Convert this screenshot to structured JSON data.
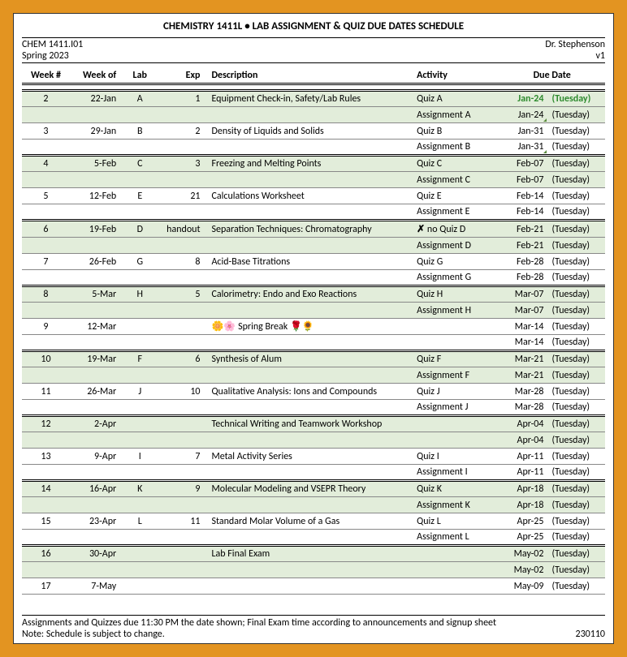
{
  "title": "CHEMISTRY 1411L  •  LAB ASSIGNMENT & QUIZ DUE DATES SCHEDULE",
  "meta": {
    "course": "CHEM 1411.I01",
    "term": "Spring 2023",
    "instructor": "Dr. Stephenson",
    "version": "v1"
  },
  "headers": {
    "week": "Week #",
    "weekof": "Week of",
    "lab": "Lab",
    "exp": "Exp",
    "desc": "Description",
    "activity": "Activity",
    "due": "Due Date"
  },
  "rows": [
    {
      "shade": true,
      "week": "2",
      "weekof": "22-Jan",
      "lab": "A",
      "exp": "1",
      "desc": "Equipment Check-in, Safety/Lab Rules",
      "act": "Quiz A",
      "due": "Jan-24",
      "day": "(Tuesday)",
      "green": true
    },
    {
      "shade": true,
      "week": "",
      "weekof": "",
      "lab": "",
      "exp": "",
      "desc": "",
      "act": "Assignment A",
      "due": "Jan-24",
      "day": "(Tuesday)",
      "tick": true
    },
    {
      "shade": false,
      "week": "3",
      "weekof": "29-Jan",
      "lab": "B",
      "exp": "2",
      "desc": "Density of Liquids and Solids",
      "act": "Quiz B",
      "due": "Jan-31",
      "day": "(Tuesday)"
    },
    {
      "shade": false,
      "week": "",
      "weekof": "",
      "lab": "",
      "exp": "",
      "desc": "",
      "act": "Assignment B",
      "due": "Jan-31",
      "day": "(Tuesday)",
      "tick": true,
      "sep": true
    },
    {
      "shade": true,
      "week": "4",
      "weekof": "5-Feb",
      "lab": "C",
      "exp": "3",
      "desc": "Freezing and Melting Points",
      "act": "Quiz C",
      "due": "Feb-07",
      "day": "(Tuesday)"
    },
    {
      "shade": true,
      "week": "",
      "weekof": "",
      "lab": "",
      "exp": "",
      "desc": "",
      "act": "Assignment C",
      "due": "Feb-07",
      "day": "(Tuesday)"
    },
    {
      "shade": false,
      "week": "5",
      "weekof": "12-Feb",
      "lab": "E",
      "exp": "21",
      "desc": "Calculations Worksheet",
      "act": "Quiz E",
      "due": "Feb-14",
      "day": "(Tuesday)"
    },
    {
      "shade": false,
      "week": "",
      "weekof": "",
      "lab": "",
      "exp": "",
      "desc": "",
      "act": "Assignment E",
      "due": "Feb-14",
      "day": "(Tuesday)",
      "sep": true
    },
    {
      "shade": true,
      "week": "6",
      "weekof": "19-Feb",
      "lab": "D",
      "exp": "handout",
      "desc": "Separation Techniques: Chromatography",
      "act": "no Quiz D",
      "due": "Feb-21",
      "day": "(Tuesday)",
      "noquiz": true
    },
    {
      "shade": true,
      "week": "",
      "weekof": "",
      "lab": "",
      "exp": "",
      "desc": "",
      "act": "Assignment D",
      "due": "Feb-21",
      "day": "(Tuesday)"
    },
    {
      "shade": false,
      "week": "7",
      "weekof": "26-Feb",
      "lab": "G",
      "exp": "8",
      "desc": "Acid-Base Titrations",
      "act": "Quiz G",
      "due": "Feb-28",
      "day": "(Tuesday)"
    },
    {
      "shade": false,
      "week": "",
      "weekof": "",
      "lab": "",
      "exp": "",
      "desc": "",
      "act": "Assignment G",
      "due": "Feb-28",
      "day": "(Tuesday)",
      "sep": true
    },
    {
      "shade": true,
      "week": "8",
      "weekof": "5-Mar",
      "lab": "H",
      "exp": "5",
      "desc": "Calorimetry: Endo and Exo Reactions",
      "act": "Quiz H",
      "due": "Mar-07",
      "day": "(Tuesday)"
    },
    {
      "shade": true,
      "week": "",
      "weekof": "",
      "lab": "",
      "exp": "",
      "desc": "",
      "act": "Assignment H",
      "due": "Mar-07",
      "day": "(Tuesday)"
    },
    {
      "shade": false,
      "week": "9",
      "weekof": "12-Mar",
      "lab": "",
      "exp": "",
      "desc": "🌼🌸 Spring Break 🌹🌻",
      "act": "",
      "due": "Mar-14",
      "day": "(Tuesday)"
    },
    {
      "shade": false,
      "week": "",
      "weekof": "",
      "lab": "",
      "exp": "",
      "desc": "",
      "act": "",
      "due": "Mar-14",
      "day": "(Tuesday)",
      "sep": true
    },
    {
      "shade": true,
      "week": "10",
      "weekof": "19-Mar",
      "lab": "F",
      "exp": "6",
      "desc": "Synthesis of Alum",
      "act": "Quiz F",
      "due": "Mar-21",
      "day": "(Tuesday)"
    },
    {
      "shade": true,
      "week": "",
      "weekof": "",
      "lab": "",
      "exp": "",
      "desc": "",
      "act": "Assignment F",
      "due": "Mar-21",
      "day": "(Tuesday)"
    },
    {
      "shade": false,
      "week": "11",
      "weekof": "26-Mar",
      "lab": "J",
      "exp": "10",
      "desc": "Qualitative Analysis: Ions and Compounds",
      "act": "Quiz J",
      "due": "Mar-28",
      "day": "(Tuesday)"
    },
    {
      "shade": false,
      "week": "",
      "weekof": "",
      "lab": "",
      "exp": "",
      "desc": "",
      "act": "Assignment J",
      "due": "Mar-28",
      "day": "(Tuesday)",
      "sep": true
    },
    {
      "shade": true,
      "week": "12",
      "weekof": "2-Apr",
      "lab": "",
      "exp": "",
      "desc": "Technical Writing and Teamwork Workshop",
      "act": "",
      "due": "Apr-04",
      "day": "(Tuesday)"
    },
    {
      "shade": true,
      "week": "",
      "weekof": "",
      "lab": "",
      "exp": "",
      "desc": "",
      "act": "",
      "due": "Apr-04",
      "day": "(Tuesday)"
    },
    {
      "shade": false,
      "week": "13",
      "weekof": "9-Apr",
      "lab": "I",
      "exp": "7",
      "desc": "Metal Activity Series",
      "act": "Quiz I",
      "due": "Apr-11",
      "day": "(Tuesday)"
    },
    {
      "shade": false,
      "week": "",
      "weekof": "",
      "lab": "",
      "exp": "",
      "desc": "",
      "act": "Assignment I",
      "due": "Apr-11",
      "day": "(Tuesday)",
      "sep": true
    },
    {
      "shade": true,
      "week": "14",
      "weekof": "16-Apr",
      "lab": "K",
      "exp": "9",
      "desc": "Molecular Modeling and VSEPR Theory",
      "act": "Quiz K",
      "due": "Apr-18",
      "day": "(Tuesday)"
    },
    {
      "shade": true,
      "week": "",
      "weekof": "",
      "lab": "",
      "exp": "",
      "desc": "",
      "act": "Assignment K",
      "due": "Apr-18",
      "day": "(Tuesday)"
    },
    {
      "shade": false,
      "week": "15",
      "weekof": "23-Apr",
      "lab": "L",
      "exp": "11",
      "desc": "Standard Molar Volume of a Gas",
      "act": "Quiz L",
      "due": "Apr-25",
      "day": "(Tuesday)"
    },
    {
      "shade": false,
      "week": "",
      "weekof": "",
      "lab": "",
      "exp": "",
      "desc": "",
      "act": "Assignment L",
      "due": "Apr-25",
      "day": "(Tuesday)",
      "sep": true
    },
    {
      "shade": true,
      "week": "16",
      "weekof": "30-Apr",
      "lab": "",
      "exp": "",
      "desc": "Lab Final Exam",
      "act": "",
      "due": "May-02",
      "day": "(Tuesday)"
    },
    {
      "shade": true,
      "week": "",
      "weekof": "",
      "lab": "",
      "exp": "",
      "desc": "",
      "act": "",
      "due": "May-02",
      "day": "(Tuesday)"
    },
    {
      "shade": false,
      "week": "17",
      "weekof": "7-May",
      "lab": "",
      "exp": "",
      "desc": "",
      "act": "",
      "due": "May-09",
      "day": "(Tuesday)"
    }
  ],
  "footer": {
    "note1": "Assignments and Quizzes due 11:30 PM the date shown; Final Exam time according to announcements and signup sheet",
    "note2": "Note: Schedule is subject to change.",
    "stamp": "230110"
  },
  "colors": {
    "frame": "#e39421",
    "shade": "#e2edda",
    "green_text": "#2e8b2e"
  }
}
